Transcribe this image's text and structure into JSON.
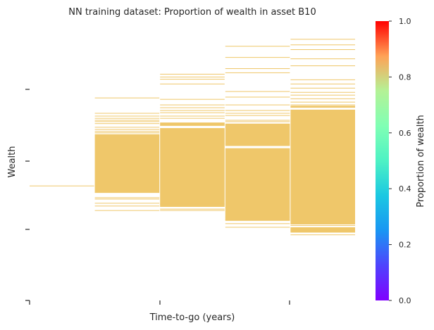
{
  "chart_data": {
    "type": "heatmap",
    "title": "NN training dataset: Proportion of wealth in asset B10",
    "xlabel": "Time-to-go (years)",
    "ylabel": "Wealth",
    "x_tick_labels": [],
    "y_tick_labels": [],
    "fill_color": "#efc76a",
    "fill_value": 0.7,
    "columns": [
      {
        "solid": [],
        "lines": [
          0.41
        ]
      },
      {
        "solid": [
          [
            0.385,
            0.595
          ]
        ],
        "lines": [
          0.322,
          0.338,
          0.348,
          0.363,
          0.368,
          0.6,
          0.605,
          0.612,
          0.62,
          0.633,
          0.64,
          0.645,
          0.652,
          0.66,
          0.67,
          0.725
        ]
      },
      {
        "solid": [
          [
            0.335,
            0.617
          ],
          [
            0.625,
            0.637
          ]
        ],
        "lines": [
          0.322,
          0.327,
          0.345,
          0.652,
          0.66,
          0.672,
          0.68,
          0.69,
          0.7,
          0.72,
          0.775,
          0.792,
          0.8,
          0.81
        ]
      },
      {
        "solid": [
          [
            0.285,
            0.545
          ],
          [
            0.553,
            0.633
          ]
        ],
        "lines": [
          0.262,
          0.275,
          0.29,
          0.298,
          0.56,
          0.64,
          0.645,
          0.662,
          0.67,
          0.68,
          0.7,
          0.728,
          0.748,
          0.815,
          0.83,
          0.87,
          0.91
        ]
      },
      {
        "solid": [
          [
            0.243,
            0.262
          ],
          [
            0.272,
            0.683
          ],
          [
            0.69,
            0.697
          ]
        ],
        "lines": [
          0.235,
          0.25,
          0.255,
          0.268,
          0.7,
          0.71,
          0.722,
          0.735,
          0.745,
          0.76,
          0.775,
          0.79,
          0.84,
          0.865,
          0.898,
          0.915,
          0.935
        ]
      }
    ],
    "colorbar": {
      "label": "Proportion of wealth",
      "colormap": "rainbow",
      "range": [
        0,
        1
      ],
      "ticks": [
        "0.0",
        "0.2",
        "0.4",
        "0.6",
        "0.8",
        "1.0"
      ]
    }
  }
}
